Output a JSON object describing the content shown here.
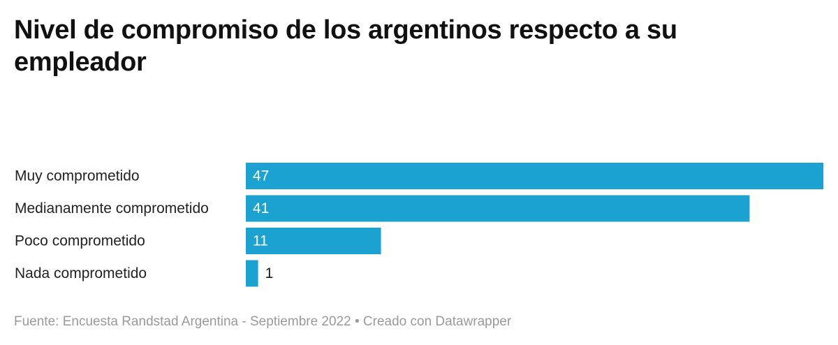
{
  "chart_data": {
    "type": "bar",
    "orientation": "horizontal",
    "title": "Nivel de compromiso de los argentinos respecto a su empleador",
    "categories": [
      "Muy comprometido",
      "Medianamente comprometido",
      "Poco comprometido",
      "Nada comprometido"
    ],
    "values": [
      47,
      41,
      11,
      1
    ],
    "xlim": [
      0,
      47
    ],
    "grid": false,
    "legend": "none",
    "bar_color": "#1ba2d1",
    "label_inside_color": "#ffffff",
    "label_outside_color": "#1a1a1a"
  },
  "footer": {
    "source": "Fuente: Encuesta Randstad Argentina - Septiembre 2022",
    "separator": "•",
    "credit": "Creado con Datawrapper"
  }
}
